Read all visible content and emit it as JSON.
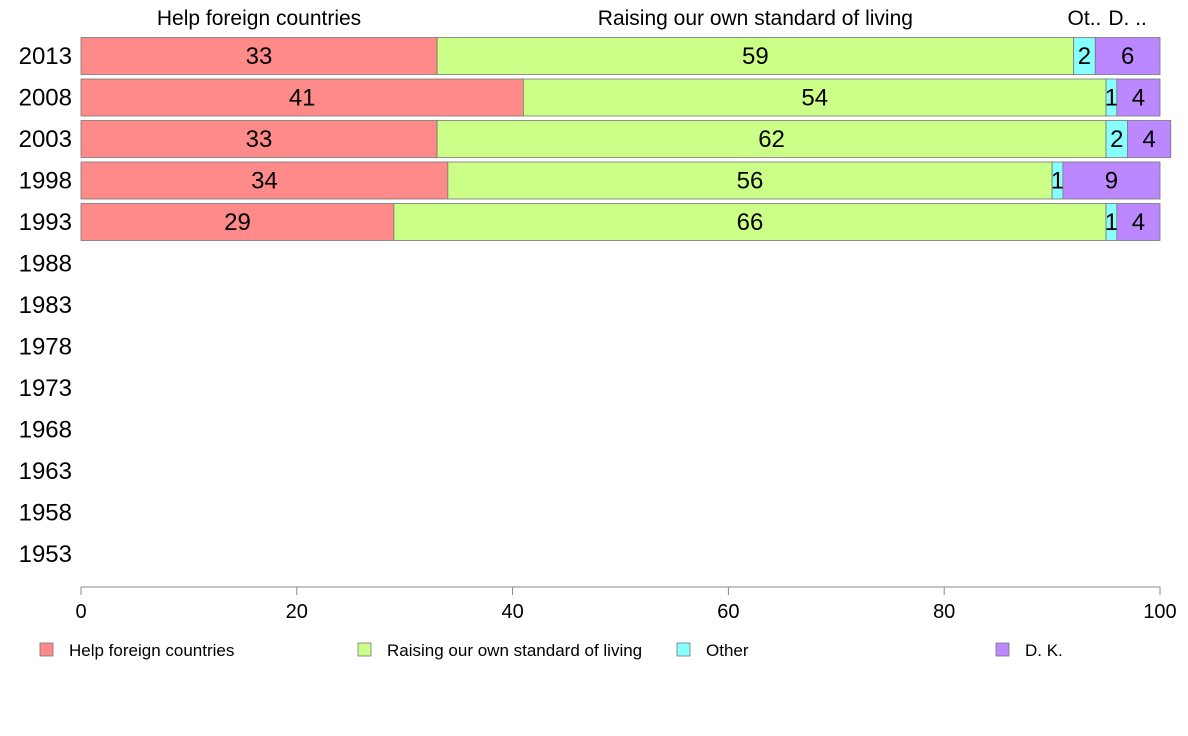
{
  "chart_data": {
    "type": "bar",
    "orientation": "horizontal",
    "stacked": true,
    "categories": [
      "2013",
      "2008",
      "2003",
      "1998",
      "1993",
      "1988",
      "1983",
      "1978",
      "1973",
      "1968",
      "1963",
      "1958",
      "1953"
    ],
    "series": [
      {
        "name": "Help foreign countries",
        "color": "#ff8a8a",
        "values": [
          33,
          41,
          33,
          34,
          29,
          null,
          null,
          null,
          null,
          null,
          null,
          null,
          null
        ]
      },
      {
        "name": "Raising our own standard of living",
        "color": "#ccff88",
        "values": [
          59,
          54,
          62,
          56,
          66,
          null,
          null,
          null,
          null,
          null,
          null,
          null,
          null
        ]
      },
      {
        "name": "Other",
        "color": "#88ffff",
        "values": [
          2,
          1,
          2,
          1,
          1,
          null,
          null,
          null,
          null,
          null,
          null,
          null,
          null
        ]
      },
      {
        "name": "D. K.",
        "color": "#bb88ff",
        "values": [
          6,
          4,
          4,
          9,
          4,
          null,
          null,
          null,
          null,
          null,
          null,
          null,
          null
        ]
      }
    ],
    "top_labels": [
      "Help foreign countries",
      "Raising our own standard of living",
      "Ot..",
      "D. .."
    ],
    "xlim": [
      0,
      100
    ],
    "xticks": [
      0,
      20,
      40,
      60,
      80,
      100
    ],
    "grid": false,
    "legend_position": "bottom"
  }
}
